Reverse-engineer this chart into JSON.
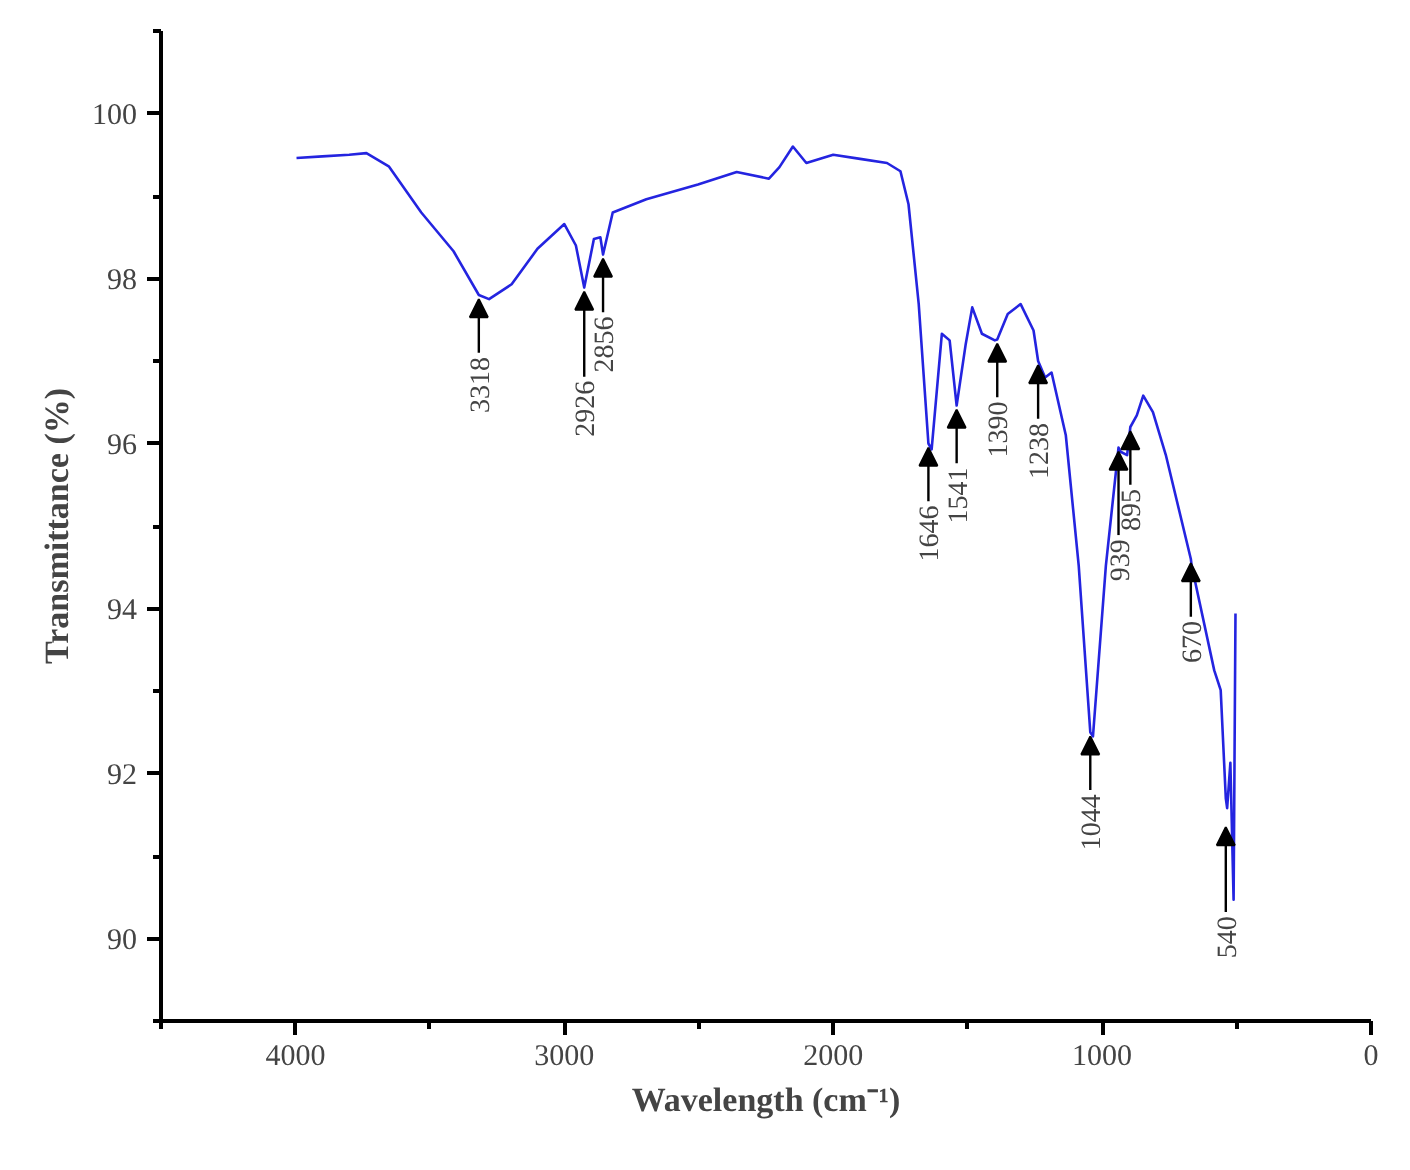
{
  "chart_data": {
    "type": "line",
    "xlabel": "Wavelength (cm⁻¹)",
    "ylabel": "Transmittance (%)",
    "xlim": [
      4500,
      0
    ],
    "xticks": [
      4000,
      3000,
      2000,
      1000,
      0
    ],
    "ylim": [
      89,
      101
    ],
    "yticks": [
      90,
      92,
      94,
      96,
      98,
      100
    ],
    "grid": false,
    "line_style": "solid",
    "series": [
      {
        "color": "#2424e0",
        "x": [
          3996,
          3900,
          3800,
          3736,
          3653,
          3532,
          3412,
          3318,
          3280,
          3196,
          3100,
          3000,
          2957,
          2926,
          2890,
          2866,
          2856,
          2820,
          2695,
          2503,
          2359,
          2239,
          2200,
          2150,
          2100,
          2000,
          1900,
          1800,
          1750,
          1720,
          1682,
          1646,
          1634,
          1596,
          1567,
          1541,
          1507,
          1483,
          1447,
          1399,
          1390,
          1351,
          1303,
          1255,
          1238,
          1212,
          1188,
          1135,
          1087,
          1044,
          1034,
          986,
          939,
          931,
          907,
          895,
          871,
          847,
          811,
          763,
          670,
          667,
          583,
          559,
          540,
          535,
          523,
          511,
          504
        ],
        "values": [
          99.46,
          99.48,
          99.5,
          99.52,
          99.36,
          98.8,
          98.33,
          97.8,
          97.75,
          97.93,
          98.36,
          98.66,
          98.4,
          97.89,
          98.48,
          98.5,
          98.29,
          98.8,
          98.96,
          99.14,
          99.29,
          99.21,
          99.35,
          99.6,
          99.4,
          99.5,
          99.45,
          99.4,
          99.3,
          98.9,
          97.69,
          96.0,
          95.93,
          97.33,
          97.25,
          96.46,
          97.21,
          97.65,
          97.33,
          97.25,
          97.26,
          97.57,
          97.69,
          97.37,
          97.0,
          96.8,
          96.86,
          96.1,
          94.52,
          92.5,
          92.45,
          94.52,
          95.95,
          95.9,
          95.86,
          96.2,
          96.34,
          96.58,
          96.38,
          95.86,
          94.6,
          94.52,
          93.25,
          93.01,
          91.7,
          91.58,
          92.13,
          90.47,
          93.94
        ]
      }
    ],
    "annotations": [
      {
        "text": "3318",
        "x": 3318,
        "y": 97.8
      },
      {
        "text": "2926",
        "x": 2926,
        "y": 97.89
      },
      {
        "text": "2856",
        "x": 2856,
        "y": 98.29
      },
      {
        "text": "1646",
        "x": 1646,
        "y": 96.0
      },
      {
        "text": "1541",
        "x": 1541,
        "y": 96.46
      },
      {
        "text": "1390",
        "x": 1390,
        "y": 97.26
      },
      {
        "text": "1238",
        "x": 1238,
        "y": 97.0
      },
      {
        "text": "1044",
        "x": 1044,
        "y": 92.5
      },
      {
        "text": "939",
        "x": 939,
        "y": 95.95
      },
      {
        "text": "895",
        "x": 895,
        "y": 96.2
      },
      {
        "text": "670",
        "x": 670,
        "y": 94.6
      },
      {
        "text": "540",
        "x": 540,
        "y": 91.4
      }
    ]
  }
}
